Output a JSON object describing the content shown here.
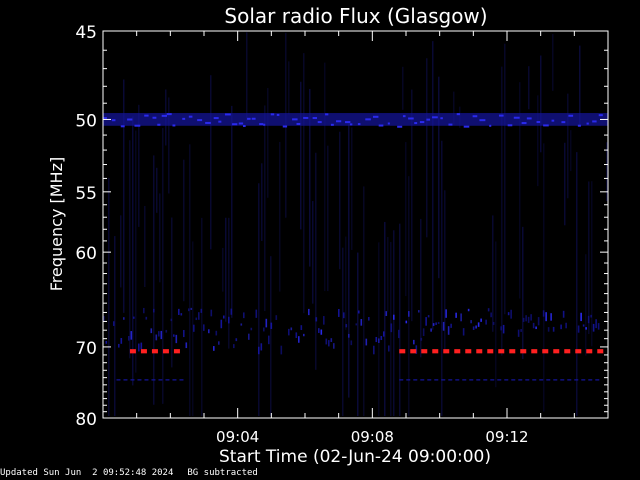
{
  "footer": {
    "updated": "Updated Sun Jun  2 09:52:48 2024",
    "note": "BG subtracted"
  },
  "chart_data": {
    "type": "heatmap",
    "title": "Solar radio Flux (Glasgow)",
    "xlabel": "Start Time (02-Jun-24 09:00:00)",
    "ylabel": "Frequency [MHz]",
    "x_unit": "minutes after 09:00:00",
    "xlim": [
      0,
      15
    ],
    "ylim": [
      45,
      80
    ],
    "y_scale": "reciprocal",
    "x_ticks": [
      {
        "value": 4,
        "label": "09:04"
      },
      {
        "value": 8,
        "label": "09:08"
      },
      {
        "value": 12,
        "label": "09:12"
      }
    ],
    "y_ticks": [
      {
        "value": 45,
        "label": "45"
      },
      {
        "value": 50,
        "label": "50"
      },
      {
        "value": 55,
        "label": "55"
      },
      {
        "value": 60,
        "label": "60"
      },
      {
        "value": 70,
        "label": "70"
      },
      {
        "value": 80,
        "label": "80"
      }
    ],
    "colors": {
      "background": "#000000",
      "faint": "#0a0a38",
      "weak": "#1515a0",
      "medium": "#2a2aee",
      "strong": "#ff2020",
      "axes": "#ffffff"
    },
    "grid": false,
    "features": [
      {
        "name": "interference band",
        "freq_mhz": [
          49.6,
          50.4
        ],
        "time": [
          0,
          15
        ],
        "level": "medium"
      },
      {
        "name": "broadband emission",
        "freq_mhz": [
          65.5,
          70.0
        ],
        "time": [
          0,
          9.5
        ],
        "level": "weak"
      },
      {
        "name": "broadband emission",
        "freq_mhz": [
          65.5,
          68.0
        ],
        "time": [
          9.5,
          15
        ],
        "level": "weak"
      },
      {
        "name": "strong narrowband",
        "freq_mhz": [
          70.4,
          70.8
        ],
        "time": [
          0.8,
          2.5
        ],
        "level": "strong"
      },
      {
        "name": "strong narrowband",
        "freq_mhz": [
          70.4,
          70.8
        ],
        "time": [
          8.8,
          14.9
        ],
        "level": "strong"
      },
      {
        "name": "faint line",
        "freq_mhz": [
          74.2,
          74.5
        ],
        "time": [
          0.4,
          2.5
        ],
        "level": "faint"
      },
      {
        "name": "faint line",
        "freq_mhz": [
          74.2,
          74.5
        ],
        "time": [
          8.8,
          14.9
        ],
        "level": "faint"
      }
    ]
  }
}
